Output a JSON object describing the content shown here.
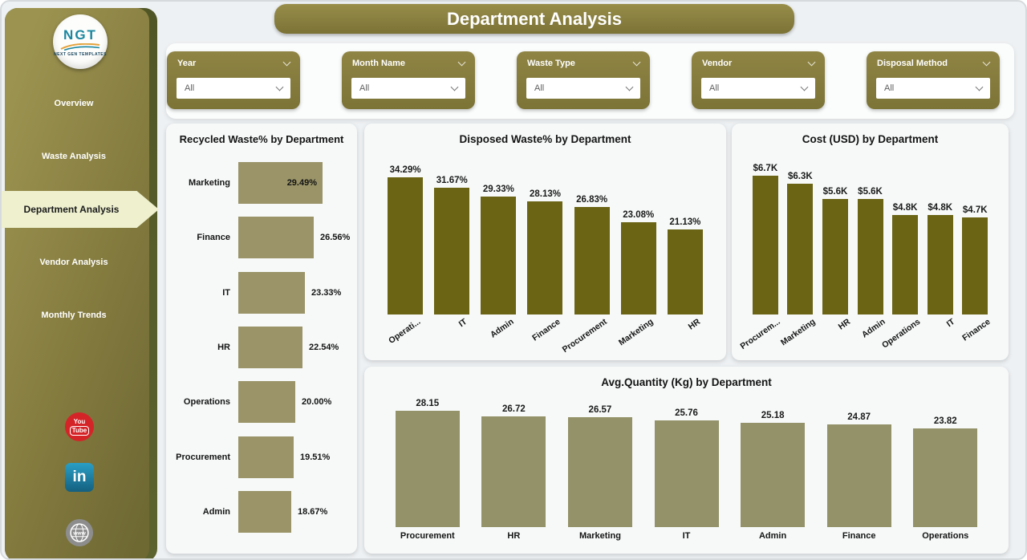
{
  "page": {
    "title": "Department Analysis"
  },
  "sidebar": {
    "logo": {
      "text": "NGT",
      "subtext": "NEXT GEN TEMPLATES"
    },
    "items": [
      {
        "label": "Overview",
        "selected": false
      },
      {
        "label": "Waste Analysis",
        "selected": false
      },
      {
        "label": "Department Analysis",
        "selected": true
      },
      {
        "label": "Vendor Analysis",
        "selected": false
      },
      {
        "label": "Monthly Trends",
        "selected": false
      }
    ],
    "social": [
      {
        "name": "youtube",
        "text_top": "You",
        "text_bottom": "Tube"
      },
      {
        "name": "linkedin",
        "text": "in"
      },
      {
        "name": "website",
        "text": "www"
      }
    ]
  },
  "filters": [
    {
      "label": "Year",
      "value": "All"
    },
    {
      "label": "Month Name",
      "value": "All"
    },
    {
      "label": "Waste Type",
      "value": "All"
    },
    {
      "label": "Vendor",
      "value": "All"
    },
    {
      "label": "Disposal Method",
      "value": "All"
    }
  ],
  "colors": {
    "accent_olive": "#857c3b",
    "bar_dark_olive": "#6a6414",
    "bar_khaki": "#9a9468",
    "bar_khaki_muted": "#949268",
    "selected_nav_bg": "#eef0ce",
    "youtube_red": "#d42428",
    "linkedin_blue": "#1e7fa8"
  },
  "chart_data": [
    {
      "id": "recycled",
      "type": "bar",
      "orientation": "horizontal",
      "title": "Recycled Waste% by Department",
      "categories": [
        "Marketing",
        "Finance",
        "IT",
        "HR",
        "Operations",
        "Procurement",
        "Admin"
      ],
      "values": [
        29.49,
        26.56,
        23.33,
        22.54,
        20.0,
        19.51,
        18.67
      ],
      "labels": [
        "29.49%",
        "26.56%",
        "23.33%",
        "22.54%",
        "20.00%",
        "19.51%",
        "18.67%"
      ],
      "xlim": [
        0,
        30
      ],
      "bar_color": "#9a9468",
      "grid": false,
      "legend": "none"
    },
    {
      "id": "disposed",
      "type": "bar",
      "orientation": "vertical",
      "title": "Disposed Waste% by Department",
      "categories": [
        "Operations",
        "IT",
        "Admin",
        "Finance",
        "Procurement",
        "Marketing",
        "HR"
      ],
      "tick_labels": [
        "Operati...",
        "IT",
        "Admin",
        "Finance",
        "Procurement",
        "Marketing",
        "HR"
      ],
      "values": [
        34.29,
        31.67,
        29.33,
        28.13,
        26.83,
        23.08,
        21.13
      ],
      "labels": [
        "34.29%",
        "31.67%",
        "29.33%",
        "28.13%",
        "26.83%",
        "23.08%",
        "21.13%"
      ],
      "ylim": [
        0,
        36
      ],
      "bar_color": "#6a6414",
      "grid": false,
      "legend": "none"
    },
    {
      "id": "cost",
      "type": "bar",
      "orientation": "vertical",
      "title": "Cost (USD) by Department",
      "categories": [
        "Procurement",
        "Marketing",
        "HR",
        "Admin",
        "Operations",
        "IT",
        "Finance"
      ],
      "tick_labels": [
        "Procurem...",
        "Marketing",
        "HR",
        "Admin",
        "Operations",
        "IT",
        "Finance"
      ],
      "values": [
        6.7,
        6.3,
        5.6,
        5.6,
        4.8,
        4.8,
        4.7
      ],
      "labels": [
        "$6.7K",
        "$6.3K",
        "$5.6K",
        "$5.6K",
        "$4.8K",
        "$4.8K",
        "$4.7K"
      ],
      "ylim": [
        0,
        7
      ],
      "bar_color": "#6a6414",
      "grid": false,
      "legend": "none"
    },
    {
      "id": "avgqty",
      "type": "bar",
      "orientation": "vertical",
      "title": "Avg.Quantity (Kg) by Department",
      "categories": [
        "Procurement",
        "HR",
        "Marketing",
        "IT",
        "Admin",
        "Finance",
        "Operations"
      ],
      "tick_labels": [
        "Procurement",
        "HR",
        "Marketing",
        "IT",
        "Admin",
        "Finance",
        "Operations"
      ],
      "values": [
        28.15,
        26.72,
        26.57,
        25.76,
        25.18,
        24.87,
        23.82
      ],
      "labels": [
        "28.15",
        "26.72",
        "26.57",
        "25.76",
        "25.18",
        "24.87",
        "23.82"
      ],
      "ylim": [
        0,
        30
      ],
      "bar_color": "#949268",
      "grid": false,
      "legend": "none"
    }
  ]
}
